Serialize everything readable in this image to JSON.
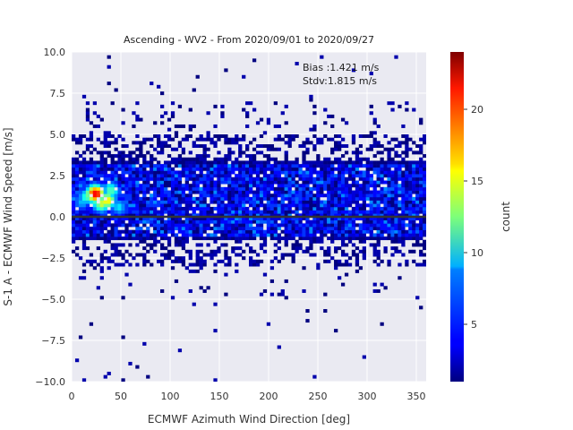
{
  "chart_data": {
    "type": "heatmap",
    "title": "Ascending - WV2 - From 2020/09/01 to 2020/09/27",
    "xlabel": "ECMWF Azimuth Wind Direction [deg]",
    "ylabel": "S-1 A - ECMWF Wind Speed [m/s]",
    "colorbar_label": "count",
    "xlim": [
      0,
      360
    ],
    "ylim": [
      -10,
      10
    ],
    "xticks": [
      "0",
      "50",
      "100",
      "150",
      "200",
      "250",
      "300",
      "350"
    ],
    "yticks": [
      "−10.0",
      "−7.5",
      "−5.0",
      "−2.5",
      "0.0",
      "2.5",
      "5.0",
      "7.5",
      "10.0"
    ],
    "colorbar_range": [
      1,
      24
    ],
    "colorbar_ticks": [
      "5",
      "10",
      "15",
      "20"
    ],
    "colormap": "jet",
    "grid": true,
    "bins": {
      "x_width": 3.6,
      "y_width": 0.2
    },
    "annotations": {
      "bias": "Bias :1.421 m/s",
      "stdv": "Stdv:1.815 m/s"
    },
    "reference_line": {
      "y": 0,
      "color": "#333333"
    },
    "density_description": "Counts concentrated between about -1.5 and 3.5 m/s across all directions, with maximum (~22) near 20-30 deg and ~1.5 m/s; sparse scatter out to about ±9 m/s.",
    "hotspots": [
      {
        "x": 24,
        "y": 1.4,
        "count": 22
      },
      {
        "x": 36,
        "y": 1.0,
        "count": 16
      },
      {
        "x": 30,
        "y": 0.8,
        "count": 14
      },
      {
        "x": 40,
        "y": 1.6,
        "count": 12
      },
      {
        "x": 15,
        "y": 1.2,
        "count": 11
      },
      {
        "x": 48,
        "y": 0.6,
        "count": 9
      },
      {
        "x": 10,
        "y": 0.9,
        "count": 8
      }
    ]
  }
}
